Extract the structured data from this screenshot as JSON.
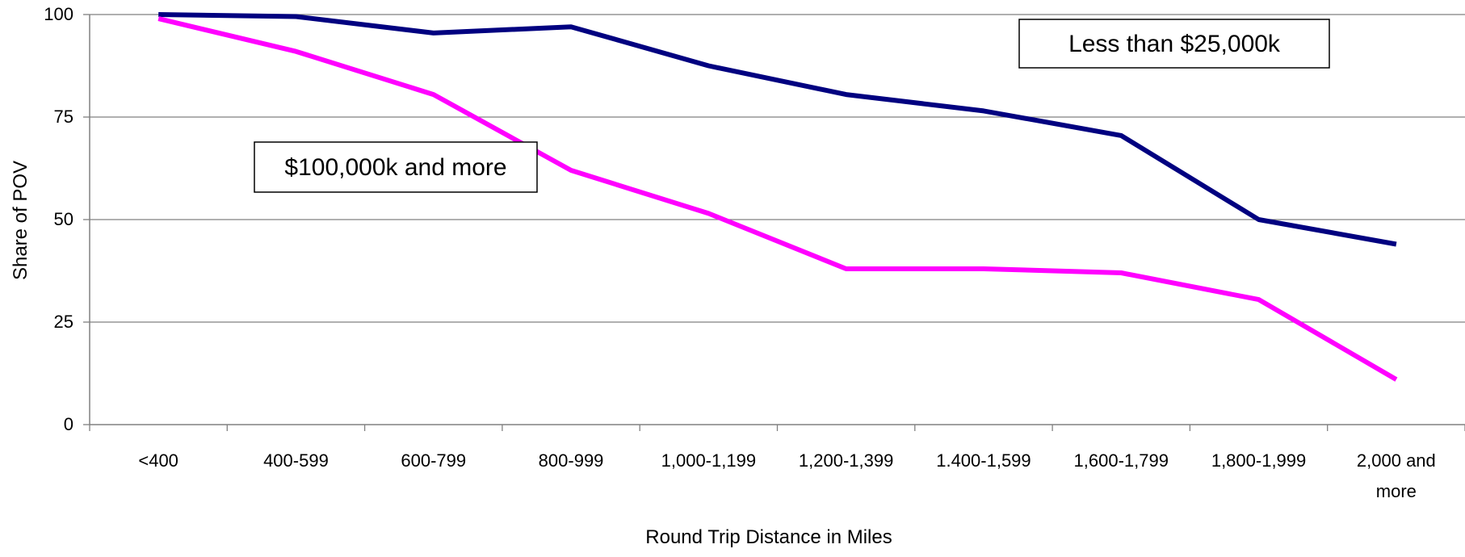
{
  "chart_data": {
    "type": "line",
    "xlabel": "Round Trip Distance in Miles",
    "ylabel": "Share of POV",
    "ylim": [
      0,
      100
    ],
    "yticks": [
      "0",
      "25",
      "50",
      "75",
      "100"
    ],
    "grid": true,
    "categories": [
      [
        "<400"
      ],
      [
        "400-599"
      ],
      [
        "600-799"
      ],
      [
        "800-999"
      ],
      [
        "1,000-1,199"
      ],
      [
        "1,200-1,399"
      ],
      [
        "1.400-1,599"
      ],
      [
        "1,600-1,799"
      ],
      [
        "1,800-1,999"
      ],
      [
        "2,000 and",
        "more"
      ]
    ],
    "series": [
      {
        "name": "Less than $25,000k",
        "color": "#000080",
        "values": [
          100,
          99.5,
          95.5,
          97,
          87.5,
          80.5,
          76.5,
          70.5,
          50,
          44
        ]
      },
      {
        "name": "$100,000k and more",
        "color": "#ff00ff",
        "values": [
          99,
          91,
          80.5,
          62,
          51.5,
          38,
          38,
          37,
          30.5,
          11
        ]
      }
    ]
  }
}
